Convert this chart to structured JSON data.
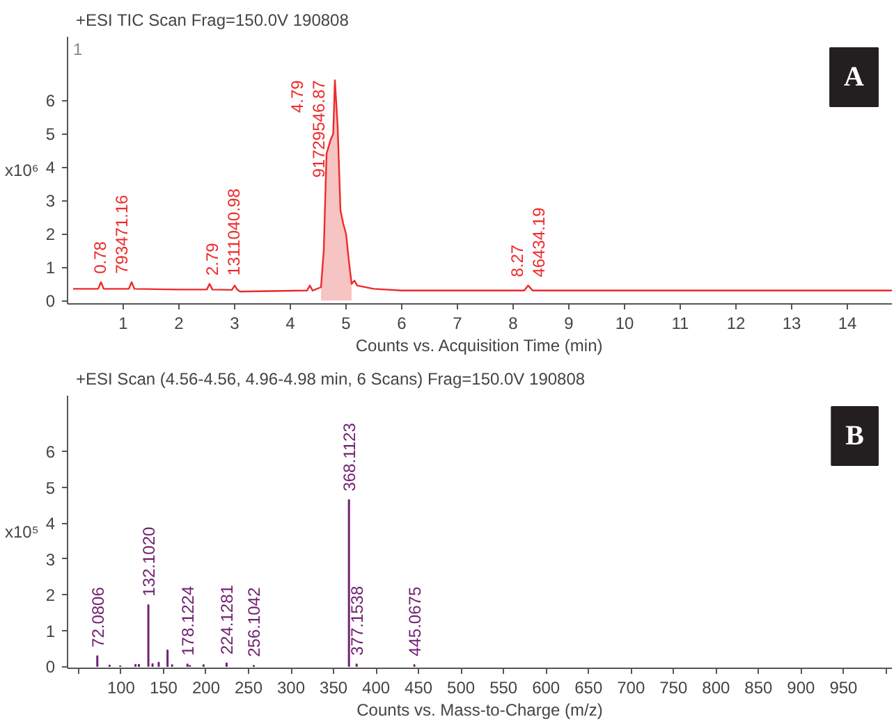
{
  "chart_data": [
    {
      "type": "line",
      "title": "+ESI TIC Scan Frag=150.0V 190808",
      "xlabel": "Counts vs. Acquisition Time (min)",
      "ylabel": "x10⁶",
      "xlim": [
        0,
        14.8
      ],
      "ylim": [
        -0.1,
        7.9
      ],
      "xticks": [
        1,
        2,
        3,
        4,
        5,
        6,
        7,
        8,
        9,
        10,
        11,
        12,
        13,
        14
      ],
      "yticks": [
        0,
        1,
        2,
        3,
        4,
        5,
        6
      ],
      "grid": false,
      "marker": "none",
      "line_style": "solid",
      "series": [
        {
          "type": "line",
          "color": "#ee2a2a",
          "x": [
            0.1,
            0.55,
            0.6,
            0.65,
            1.1,
            1.15,
            1.2,
            2.0,
            2.5,
            2.55,
            2.6,
            2.95,
            3.0,
            3.05,
            3.1,
            3.5,
            4.3,
            4.35,
            4.4,
            4.55,
            4.6,
            4.65,
            4.72,
            4.77,
            4.8,
            4.85,
            4.9,
            4.95,
            5.0,
            5.05,
            5.1,
            5.15,
            5.2,
            5.5,
            6.0,
            7.0,
            8.2,
            8.27,
            8.35,
            9.0,
            10.0,
            11.0,
            12.0,
            13.0,
            14.0,
            14.8
          ],
          "values": [
            0.35,
            0.35,
            0.55,
            0.35,
            0.35,
            0.55,
            0.35,
            0.33,
            0.33,
            0.5,
            0.33,
            0.32,
            0.45,
            0.32,
            0.27,
            0.28,
            0.3,
            0.45,
            0.3,
            0.4,
            1.5,
            4.4,
            4.8,
            5.0,
            6.6,
            5.2,
            2.7,
            2.3,
            2.0,
            1.2,
            0.5,
            0.6,
            0.45,
            0.35,
            0.3,
            0.3,
            0.3,
            0.45,
            0.3,
            0.3,
            0.3,
            0.3,
            0.3,
            0.3,
            0.3,
            0.3
          ]
        },
        {
          "type": "area",
          "color": "#f7c4c4",
          "x": [
            4.55,
            4.6,
            4.65,
            4.72,
            4.77,
            4.8,
            4.85,
            4.9,
            4.95,
            5.0,
            5.05,
            5.1
          ],
          "values": [
            0.4,
            1.5,
            4.4,
            4.8,
            5.0,
            6.6,
            5.2,
            2.7,
            2.3,
            2.0,
            1.2,
            0.5
          ]
        }
      ],
      "annotations": [
        "1",
        "A",
        {
          "text": "0.78\n793471.16",
          "x": 0.78,
          "y": 0.55
        },
        {
          "text": "2.79\n1311040.98",
          "x": 2.79,
          "y": 0.5
        },
        {
          "text": "4.79\n91729546.87",
          "x": 4.79,
          "y": 6.6
        },
        {
          "text": "8.27\n46434.19",
          "x": 8.27,
          "y": 0.45
        }
      ]
    },
    {
      "type": "bar",
      "title": "+ESI Scan (4.56-4.56, 4.96-4.98 min, 6 Scans) Frag=150.0V 190808",
      "xlabel": "Counts vs. Mass-to-Charge (m/z)",
      "ylabel": "x10⁵",
      "xlim": [
        37,
        1007
      ],
      "ylim": [
        -0.05,
        7.55
      ],
      "xticks": [
        {
          "value": 50,
          "label": null
        },
        100,
        150,
        200,
        250,
        300,
        350,
        400,
        450,
        500,
        550,
        600,
        650,
        700,
        750,
        800,
        850,
        900,
        950,
        {
          "value": 1000,
          "label": null
        }
      ],
      "yticks": [
        0,
        1,
        2,
        3,
        4,
        5,
        6
      ],
      "grid": false,
      "x": [
        72.0806,
        86.5,
        99,
        117,
        121,
        132.102,
        137,
        144.3,
        154.7,
        160,
        178.1224,
        181,
        197,
        224.1281,
        256.1042,
        368.1123,
        377.1538,
        445.0675
      ],
      "values": [
        0.3,
        0.04,
        0.02,
        0.06,
        0.06,
        1.72,
        0.08,
        0.12,
        0.46,
        0.05,
        0.07,
        0.03,
        0.05,
        0.1,
        0.03,
        4.65,
        0.07,
        0.05
      ],
      "color": "#6e1f6e",
      "annotations": [
        "B",
        {
          "text": "72.0806",
          "x": 72.0806,
          "y": 0.3
        },
        {
          "text": "132.1020",
          "x": 132.102,
          "y": 1.72
        },
        {
          "text": "178.1224",
          "x": 178.1224,
          "y": 0.07
        },
        {
          "text": "224.1281",
          "x": 224.1281,
          "y": 0.1
        },
        {
          "text": "256.1042",
          "x": 256.1042,
          "y": 0.03
        },
        {
          "text": "368.1123",
          "x": 368.1123,
          "y": 4.65
        },
        {
          "text": "377.1538",
          "x": 377.1538,
          "y": 0.07
        },
        {
          "text": "445.0675",
          "x": 445.0675,
          "y": 0.05
        }
      ]
    }
  ]
}
